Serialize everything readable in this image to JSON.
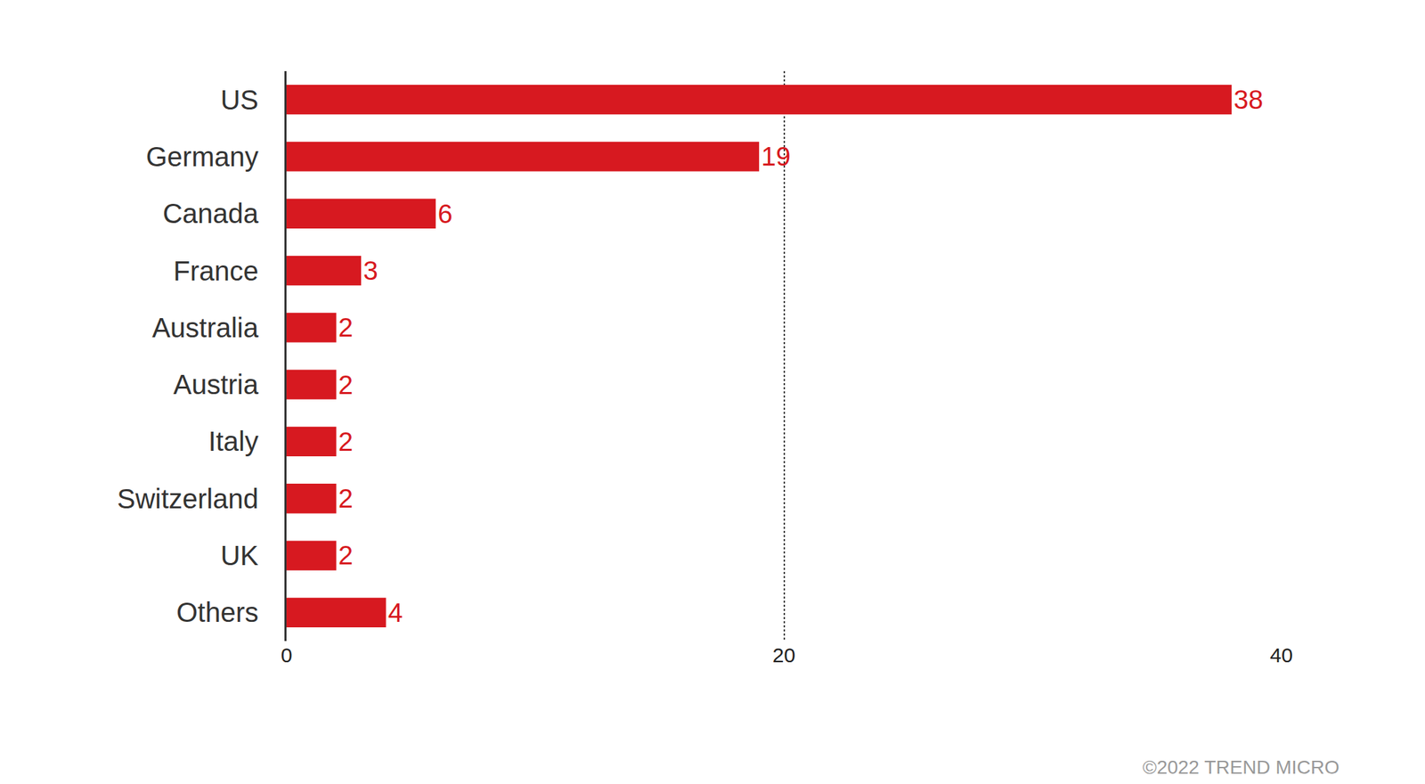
{
  "chart_data": {
    "type": "bar",
    "orientation": "horizontal",
    "categories": [
      "US",
      "Germany",
      "Canada",
      "France",
      "Australia",
      "Austria",
      "Italy",
      "Switzerland",
      "UK",
      "Others"
    ],
    "values": [
      38,
      19,
      6,
      3,
      2,
      2,
      2,
      2,
      2,
      4
    ],
    "color": "#d71920",
    "xlim": [
      0,
      40
    ],
    "xticks": [
      0,
      20,
      40
    ],
    "grid": true,
    "data_labels": true,
    "annotations": [
      "©2022 TREND MICRO"
    ]
  }
}
